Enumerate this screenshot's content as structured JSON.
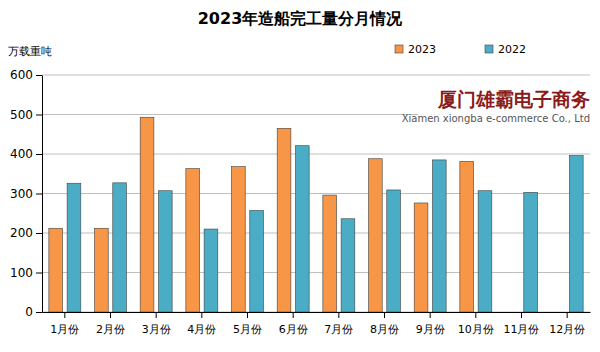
{
  "chart_data": {
    "type": "bar",
    "title": "2023年造船完工量分月情况",
    "y_label": "万载重吨",
    "categories": [
      "1月份",
      "2月份",
      "3月份",
      "4月份",
      "5月份",
      "6月份",
      "7月份",
      "8月份",
      "9月份",
      "10月份",
      "11月份",
      "12月份"
    ],
    "series": [
      {
        "name": "2023",
        "color": "#f79646",
        "values": [
          212,
          212,
          493,
          363,
          368,
          465,
          296,
          388,
          276,
          381,
          null,
          null
        ]
      },
      {
        "name": "2022",
        "color": "#4bacc6",
        "values": [
          326,
          327,
          307,
          210,
          257,
          421,
          236,
          309,
          385,
          307,
          303,
          396
        ]
      }
    ],
    "ylim": [
      0,
      600
    ],
    "yticks": [
      0,
      100,
      200,
      300,
      400,
      500,
      600
    ],
    "grid": true,
    "legend": "top-right",
    "annotations": [
      "厦门雄霸电子商务",
      "Xiamen xiongba e-commerce Co., Ltd"
    ]
  }
}
